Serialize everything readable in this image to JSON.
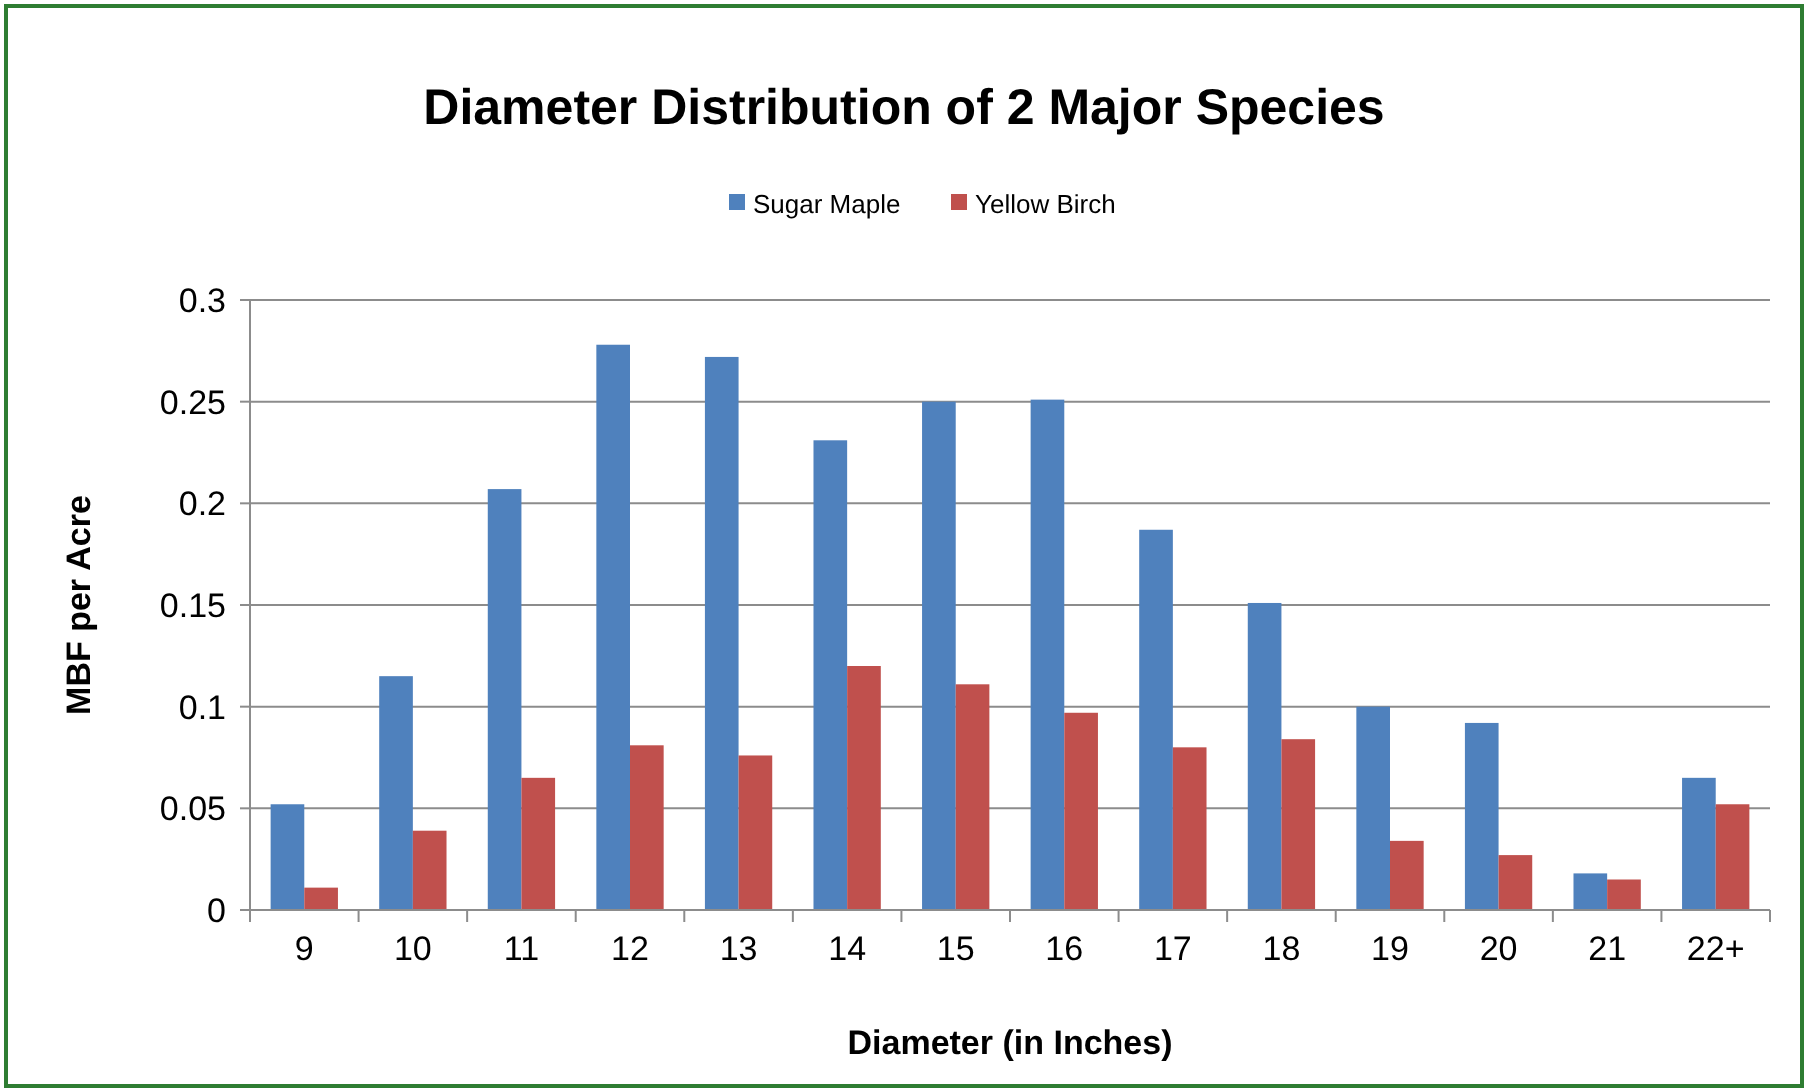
{
  "chart_data": {
    "type": "bar",
    "title": "Diameter Distribution of 2 Major Species",
    "xlabel": "Diameter (in Inches)",
    "ylabel": "MBF per Acre",
    "categories": [
      "9",
      "10",
      "11",
      "12",
      "13",
      "14",
      "15",
      "16",
      "17",
      "18",
      "19",
      "20",
      "21",
      "22+"
    ],
    "series": [
      {
        "name": "Sugar Maple",
        "color": "#4f81bd",
        "values": [
          0.052,
          0.115,
          0.207,
          0.278,
          0.272,
          0.231,
          0.25,
          0.251,
          0.187,
          0.151,
          0.1,
          0.092,
          0.018,
          0.065
        ]
      },
      {
        "name": "Yellow Birch",
        "color": "#c0504d",
        "values": [
          0.011,
          0.039,
          0.065,
          0.081,
          0.076,
          0.12,
          0.111,
          0.097,
          0.08,
          0.084,
          0.034,
          0.027,
          0.015,
          0.052
        ]
      }
    ],
    "ylim": [
      0,
      0.3
    ],
    "yticks": [
      0,
      0.05,
      0.1,
      0.15,
      0.2,
      0.25,
      0.3
    ],
    "grid": "y",
    "legend": "top"
  }
}
